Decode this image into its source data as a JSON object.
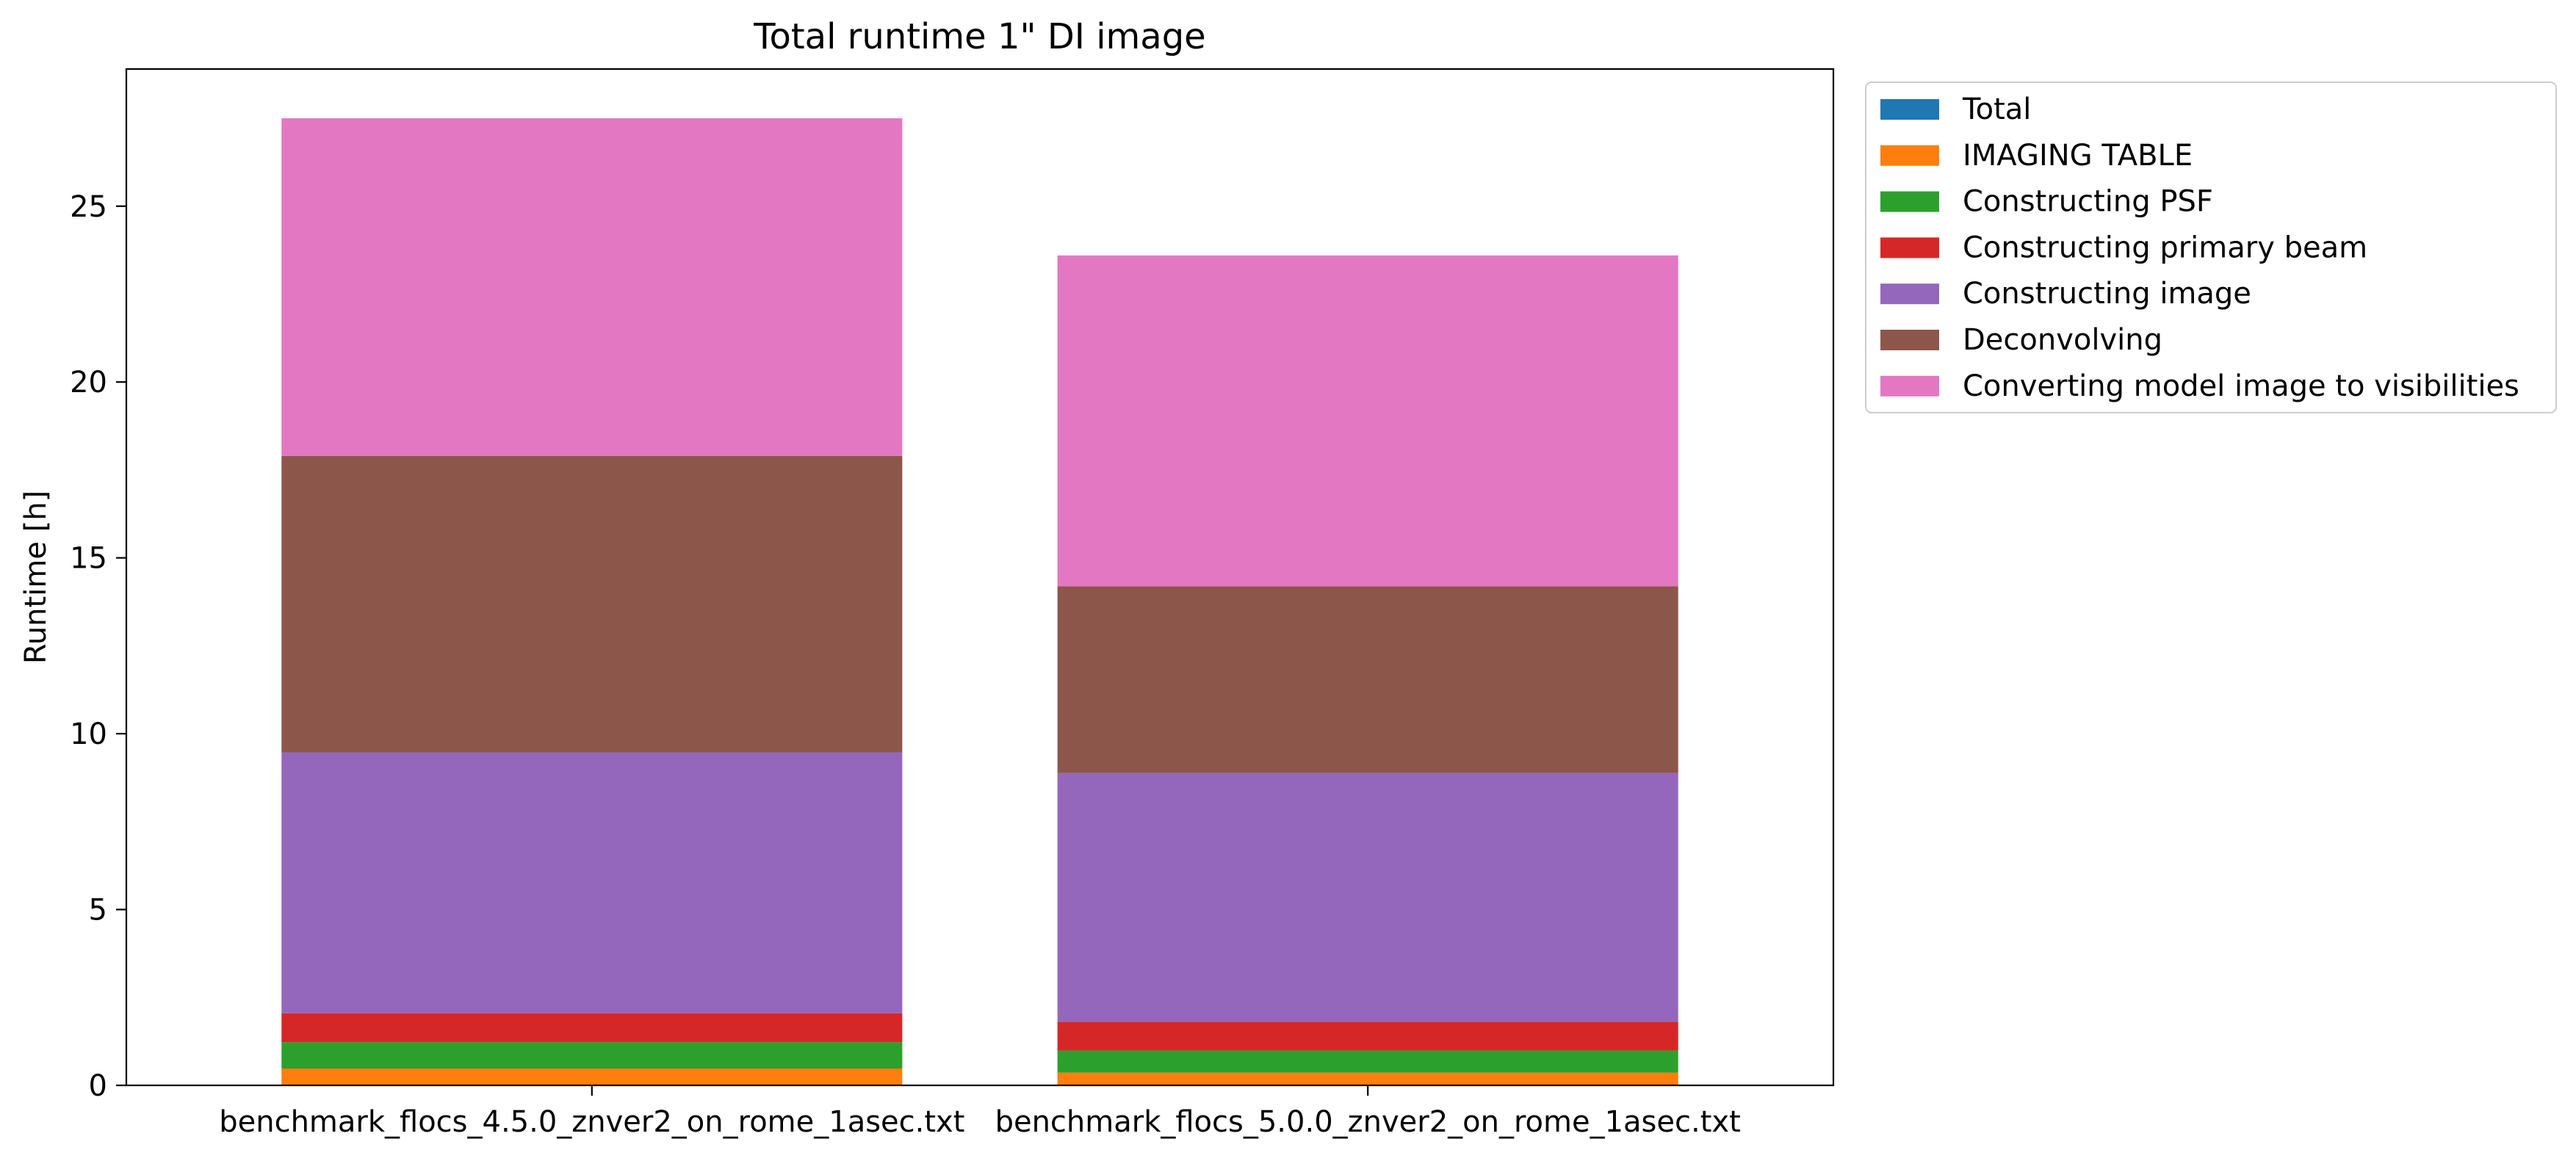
{
  "chart_data": {
    "type": "bar",
    "stacked": true,
    "title": "Total runtime 1\" DI image",
    "xlabel": "",
    "ylabel": "Runtime [h]",
    "ylim": [
      0,
      28.9
    ],
    "yticks": [
      0,
      5,
      10,
      15,
      20,
      25
    ],
    "categories": [
      "benchmark_flocs_4.5.0_znver2_on_rome_1asec.txt",
      "benchmark_flocs_5.0.0_znver2_on_rome_1asec.txt"
    ],
    "legend_position": "outside-top-right",
    "grid": false,
    "series": [
      {
        "name": "Total",
        "color": "#1f77b4",
        "values": [
          0,
          0
        ]
      },
      {
        "name": "IMAGING TABLE",
        "color": "#ff7f0e",
        "values": [
          0.48,
          0.36
        ]
      },
      {
        "name": "Constructing PSF",
        "color": "#2ca02c",
        "values": [
          0.75,
          0.63
        ]
      },
      {
        "name": "Constructing primary beam",
        "color": "#d62728",
        "values": [
          0.82,
          0.82
        ]
      },
      {
        "name": "Constructing image",
        "color": "#9467bd",
        "values": [
          7.42,
          7.07
        ]
      },
      {
        "name": "Deconvolving",
        "color": "#8c564b",
        "values": [
          8.43,
          5.31
        ]
      },
      {
        "name": "Converting model image to visibilities",
        "color": "#e377c2",
        "values": [
          9.6,
          9.41
        ]
      }
    ]
  }
}
